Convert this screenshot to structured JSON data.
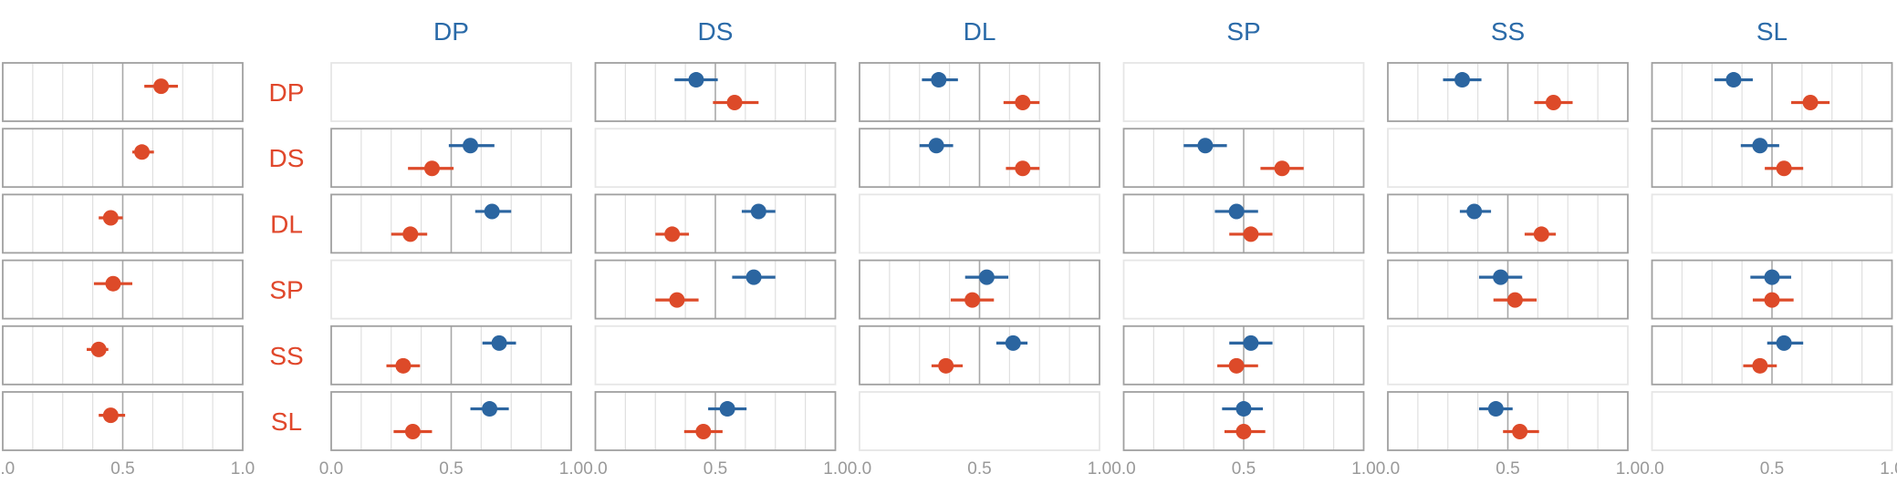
{
  "colors": {
    "series1": "#2b65a0",
    "series2": "#dd4a29",
    "active_border": "#a0a0a0",
    "inactive_border": "#e6e6e6",
    "gridline": "#e0e0e0",
    "centerline": "#a8a8a8",
    "col_title": "#2a6aa8",
    "row_label": "#e0472b",
    "tick_label": "#999999"
  },
  "chart_data": {
    "type": "scatter",
    "description_free": true,
    "columns": [
      "DP",
      "DS",
      "DL",
      "SP",
      "SS",
      "SL"
    ],
    "rows": [
      "DP",
      "DS",
      "DL",
      "SP",
      "SS",
      "SL"
    ],
    "xlim": [
      0,
      1
    ],
    "xticks": [
      0.0,
      0.5,
      1.0
    ],
    "xtick_labels": [
      "0.0",
      "0.5",
      "1.0"
    ],
    "reference_line": 0.5,
    "grid": true,
    "left_panels": [
      {
        "row": "DP",
        "est": 0.66,
        "lo": 0.59,
        "hi": 0.73
      },
      {
        "row": "DS",
        "est": 0.58,
        "lo": 0.54,
        "hi": 0.63
      },
      {
        "row": "DL",
        "est": 0.45,
        "lo": 0.4,
        "hi": 0.5
      },
      {
        "row": "SP",
        "est": 0.46,
        "lo": 0.38,
        "hi": 0.54
      },
      {
        "row": "SS",
        "est": 0.4,
        "lo": 0.35,
        "hi": 0.44
      },
      {
        "row": "SL",
        "est": 0.45,
        "lo": 0.4,
        "hi": 0.51
      }
    ],
    "grid_panels": [
      {
        "row": "DP",
        "col": "DS",
        "blue": {
          "est": 0.42,
          "lo": 0.33,
          "hi": 0.51
        },
        "red": {
          "est": 0.58,
          "lo": 0.49,
          "hi": 0.68
        }
      },
      {
        "row": "DP",
        "col": "DL",
        "blue": {
          "est": 0.33,
          "lo": 0.26,
          "hi": 0.41
        },
        "red": {
          "est": 0.68,
          "lo": 0.6,
          "hi": 0.75
        }
      },
      {
        "row": "DP",
        "col": "SS",
        "blue": {
          "est": 0.31,
          "lo": 0.23,
          "hi": 0.39
        },
        "red": {
          "est": 0.69,
          "lo": 0.61,
          "hi": 0.77
        }
      },
      {
        "row": "DP",
        "col": "SL",
        "blue": {
          "est": 0.34,
          "lo": 0.26,
          "hi": 0.42
        },
        "red": {
          "est": 0.66,
          "lo": 0.58,
          "hi": 0.74
        }
      },
      {
        "row": "DS",
        "col": "DP",
        "blue": {
          "est": 0.58,
          "lo": 0.49,
          "hi": 0.68
        },
        "red": {
          "est": 0.42,
          "lo": 0.32,
          "hi": 0.51
        }
      },
      {
        "row": "DS",
        "col": "DL",
        "blue": {
          "est": 0.32,
          "lo": 0.25,
          "hi": 0.39
        },
        "red": {
          "est": 0.68,
          "lo": 0.61,
          "hi": 0.75
        }
      },
      {
        "row": "DS",
        "col": "SP",
        "blue": {
          "est": 0.34,
          "lo": 0.25,
          "hi": 0.43
        },
        "red": {
          "est": 0.66,
          "lo": 0.57,
          "hi": 0.75
        }
      },
      {
        "row": "DS",
        "col": "SL",
        "blue": {
          "est": 0.45,
          "lo": 0.37,
          "hi": 0.53
        },
        "red": {
          "est": 0.55,
          "lo": 0.47,
          "hi": 0.63
        }
      },
      {
        "row": "DL",
        "col": "DP",
        "blue": {
          "est": 0.67,
          "lo": 0.6,
          "hi": 0.75
        },
        "red": {
          "est": 0.33,
          "lo": 0.25,
          "hi": 0.4
        }
      },
      {
        "row": "DL",
        "col": "DS",
        "blue": {
          "est": 0.68,
          "lo": 0.61,
          "hi": 0.75
        },
        "red": {
          "est": 0.32,
          "lo": 0.25,
          "hi": 0.39
        }
      },
      {
        "row": "DL",
        "col": "SP",
        "blue": {
          "est": 0.47,
          "lo": 0.38,
          "hi": 0.56
        },
        "red": {
          "est": 0.53,
          "lo": 0.44,
          "hi": 0.62
        }
      },
      {
        "row": "DL",
        "col": "SS",
        "blue": {
          "est": 0.36,
          "lo": 0.3,
          "hi": 0.43
        },
        "red": {
          "est": 0.64,
          "lo": 0.57,
          "hi": 0.7
        }
      },
      {
        "row": "SP",
        "col": "DS",
        "blue": {
          "est": 0.66,
          "lo": 0.57,
          "hi": 0.75
        },
        "red": {
          "est": 0.34,
          "lo": 0.25,
          "hi": 0.43
        }
      },
      {
        "row": "SP",
        "col": "DL",
        "blue": {
          "est": 0.53,
          "lo": 0.44,
          "hi": 0.62
        },
        "red": {
          "est": 0.47,
          "lo": 0.38,
          "hi": 0.56
        }
      },
      {
        "row": "SP",
        "col": "SS",
        "blue": {
          "est": 0.47,
          "lo": 0.38,
          "hi": 0.56
        },
        "red": {
          "est": 0.53,
          "lo": 0.44,
          "hi": 0.62
        }
      },
      {
        "row": "SP",
        "col": "SL",
        "blue": {
          "est": 0.5,
          "lo": 0.41,
          "hi": 0.58
        },
        "red": {
          "est": 0.5,
          "lo": 0.42,
          "hi": 0.59
        }
      },
      {
        "row": "SS",
        "col": "DP",
        "blue": {
          "est": 0.7,
          "lo": 0.63,
          "hi": 0.77
        },
        "red": {
          "est": 0.3,
          "lo": 0.23,
          "hi": 0.37
        }
      },
      {
        "row": "SS",
        "col": "DL",
        "blue": {
          "est": 0.64,
          "lo": 0.57,
          "hi": 0.7
        },
        "red": {
          "est": 0.36,
          "lo": 0.3,
          "hi": 0.43
        }
      },
      {
        "row": "SS",
        "col": "SP",
        "blue": {
          "est": 0.53,
          "lo": 0.44,
          "hi": 0.62
        },
        "red": {
          "est": 0.47,
          "lo": 0.39,
          "hi": 0.56
        }
      },
      {
        "row": "SS",
        "col": "SL",
        "blue": {
          "est": 0.55,
          "lo": 0.48,
          "hi": 0.63
        },
        "red": {
          "est": 0.45,
          "lo": 0.38,
          "hi": 0.52
        }
      },
      {
        "row": "SL",
        "col": "DP",
        "blue": {
          "est": 0.66,
          "lo": 0.58,
          "hi": 0.74
        },
        "red": {
          "est": 0.34,
          "lo": 0.26,
          "hi": 0.42
        }
      },
      {
        "row": "SL",
        "col": "DS",
        "blue": {
          "est": 0.55,
          "lo": 0.47,
          "hi": 0.63
        },
        "red": {
          "est": 0.45,
          "lo": 0.37,
          "hi": 0.53
        }
      },
      {
        "row": "SL",
        "col": "SP",
        "blue": {
          "est": 0.5,
          "lo": 0.41,
          "hi": 0.58
        },
        "red": {
          "est": 0.5,
          "lo": 0.42,
          "hi": 0.59
        }
      },
      {
        "row": "SL",
        "col": "SS",
        "blue": {
          "est": 0.45,
          "lo": 0.38,
          "hi": 0.52
        },
        "red": {
          "est": 0.55,
          "lo": 0.48,
          "hi": 0.63
        }
      }
    ]
  }
}
